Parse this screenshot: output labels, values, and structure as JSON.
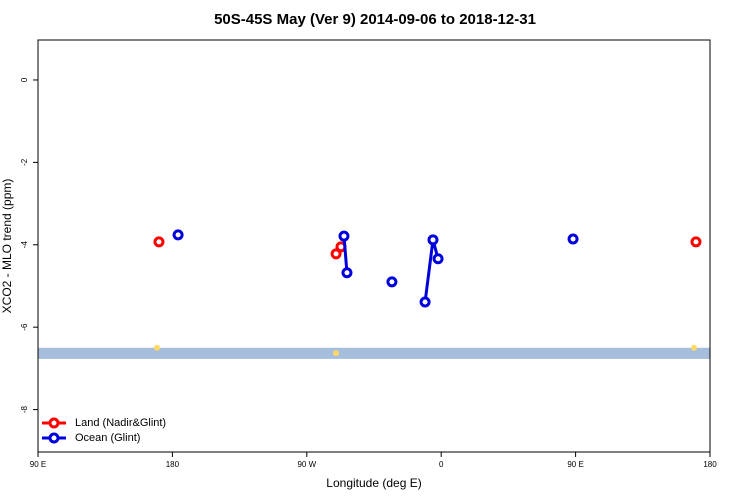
{
  "chart_data": {
    "type": "line",
    "title": "50S-45S May (Ver 9)   2014-09-06 to 2018-12-31",
    "x_label": "Longitude (deg E)",
    "y_label": "XCO2 - MLO trend (ppm)",
    "xlim": [
      90,
      540
    ],
    "ylim": [
      -9.03,
      0.97
    ],
    "xticks": [
      {
        "value": 90,
        "label": "90 E"
      },
      180,
      {
        "value": 270,
        "label": "90 W"
      },
      {
        "value": 360,
        "label": "0"
      },
      {
        "value": 450,
        "label": "90 E"
      },
      {
        "value": 540,
        "label": "180"
      }
    ],
    "yticks": [
      0,
      -2,
      -4,
      -6,
      -8
    ],
    "legend": "bottom-left",
    "series": [
      {
        "name": "Land (Nadir&Glint)",
        "color": "#ff0000",
        "x": [
          171,
          null,
          289.6,
          292.9,
          null,
          530.6
        ],
        "values": [
          -3.93,
          null,
          -4.22,
          -4.05,
          null,
          -3.93
        ]
      },
      {
        "name": "Ocean (Glint)",
        "color": "#0000dd",
        "x": [
          183.8,
          null,
          294.9,
          296.9,
          null,
          327,
          null,
          349.2,
          354.5,
          357.9,
          null,
          448.3
        ],
        "values": [
          -3.76,
          null,
          -3.79,
          -4.68,
          null,
          -4.9,
          null,
          -5.39,
          -3.88,
          -4.34,
          null,
          -3.86
        ]
      }
    ],
    "band": {
      "range": [
        -6.5,
        -6.77
      ],
      "color": "#a6bddb"
    },
    "highlights": {
      "color": "#ffd966",
      "x": [
        169.7,
        289.6,
        529.3
      ],
      "values": [
        -6.5,
        -6.63,
        -6.5
      ]
    }
  }
}
